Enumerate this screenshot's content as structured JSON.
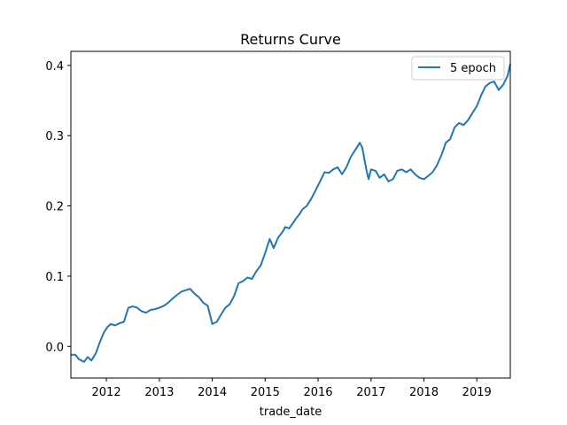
{
  "chart_data": {
    "type": "line",
    "title": "Returns Curve",
    "xlabel": "trade_date",
    "ylabel": "",
    "xlim": [
      "2011-05-01",
      "2019-08-20"
    ],
    "ylim": [
      -0.045,
      0.42
    ],
    "x_ticks": [
      "2012",
      "2013",
      "2014",
      "2015",
      "2016",
      "2017",
      "2018",
      "2019"
    ],
    "y_ticks": [
      "0.0",
      "0.1",
      "0.2",
      "0.3",
      "0.4"
    ],
    "grid": false,
    "legend_position": "top-right",
    "series_color": "#1f77b4",
    "series": [
      {
        "name": "5 epoch",
        "x": [
          "2011-05-01",
          "2011-06-01",
          "2011-06-25",
          "2011-08-01",
          "2011-08-25",
          "2011-09-20",
          "2011-10-20",
          "2011-11-15",
          "2011-12-15",
          "2012-01-10",
          "2012-02-01",
          "2012-03-01",
          "2012-04-01",
          "2012-05-01",
          "2012-06-01",
          "2012-07-01",
          "2012-08-01",
          "2012-09-01",
          "2012-10-01",
          "2012-11-01",
          "2012-12-01",
          "2013-01-01",
          "2013-02-01",
          "2013-03-01",
          "2013-04-01",
          "2013-05-01",
          "2013-06-01",
          "2013-07-01",
          "2013-08-01",
          "2013-09-01",
          "2013-10-01",
          "2013-11-01",
          "2013-12-01",
          "2014-01-01",
          "2014-02-01",
          "2014-03-01",
          "2014-04-01",
          "2014-05-01",
          "2014-06-01",
          "2014-07-01",
          "2014-08-01",
          "2014-09-01",
          "2014-10-01",
          "2014-11-01",
          "2014-12-01",
          "2015-01-01",
          "2015-02-01",
          "2015-03-01",
          "2015-04-01",
          "2015-05-01",
          "2015-05-20",
          "2015-06-15",
          "2015-07-10",
          "2015-08-01",
          "2015-08-25",
          "2015-09-15",
          "2015-10-15",
          "2015-11-15",
          "2015-12-15",
          "2016-01-15",
          "2016-02-15",
          "2016-03-15",
          "2016-04-15",
          "2016-05-15",
          "2016-06-15",
          "2016-07-15",
          "2016-08-15",
          "2016-09-15",
          "2016-10-15",
          "2016-11-01",
          "2016-11-20",
          "2016-12-01",
          "2016-12-15",
          "2017-01-01",
          "2017-02-01",
          "2017-03-01",
          "2017-04-01",
          "2017-05-01",
          "2017-06-01",
          "2017-07-01",
          "2017-08-01",
          "2017-09-01",
          "2017-10-01",
          "2017-11-01",
          "2017-12-01",
          "2018-01-01",
          "2018-02-01",
          "2018-03-01",
          "2018-04-01",
          "2018-05-01",
          "2018-06-01",
          "2018-07-01",
          "2018-08-01",
          "2018-09-01",
          "2018-10-01",
          "2018-11-01",
          "2018-12-01",
          "2019-01-01",
          "2019-02-01",
          "2019-03-01",
          "2019-04-01",
          "2019-05-01",
          "2019-06-01",
          "2019-07-01",
          "2019-08-01",
          "2019-08-20"
        ],
        "y": [
          -0.012,
          -0.012,
          -0.018,
          -0.022,
          -0.015,
          -0.02,
          -0.01,
          0.005,
          0.02,
          0.028,
          0.032,
          0.03,
          0.033,
          0.035,
          0.055,
          0.057,
          0.055,
          0.05,
          0.048,
          0.052,
          0.053,
          0.055,
          0.058,
          0.062,
          0.068,
          0.073,
          0.078,
          0.08,
          0.082,
          0.075,
          0.07,
          0.062,
          0.058,
          0.032,
          0.035,
          0.045,
          0.055,
          0.06,
          0.072,
          0.09,
          0.093,
          0.098,
          0.096,
          0.107,
          0.115,
          0.133,
          0.153,
          0.14,
          0.155,
          0.163,
          0.17,
          0.168,
          0.175,
          0.182,
          0.188,
          0.195,
          0.2,
          0.21,
          0.222,
          0.235,
          0.248,
          0.247,
          0.252,
          0.255,
          0.245,
          0.255,
          0.27,
          0.28,
          0.29,
          0.283,
          0.262,
          0.25,
          0.238,
          0.252,
          0.25,
          0.24,
          0.245,
          0.235,
          0.238,
          0.25,
          0.252,
          0.248,
          0.252,
          0.245,
          0.24,
          0.238,
          0.243,
          0.248,
          0.258,
          0.272,
          0.29,
          0.295,
          0.312,
          0.318,
          0.315,
          0.322,
          0.332,
          0.342,
          0.358,
          0.37,
          0.375,
          0.377,
          0.365,
          0.372,
          0.385,
          0.402
        ]
      }
    ]
  }
}
